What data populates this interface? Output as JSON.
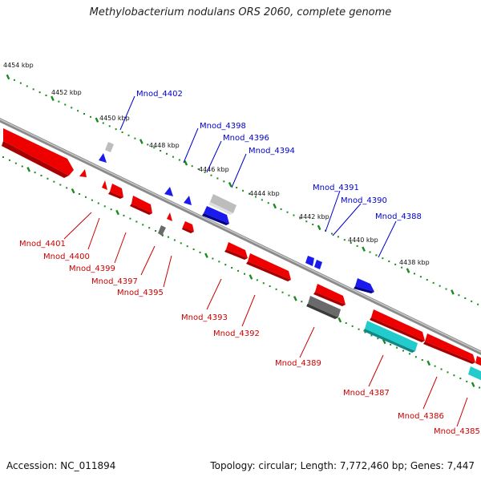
{
  "title": "Methylobacterium nodulans ORS 2060, complete genome",
  "footer": {
    "accession": "Accession: NC_011894",
    "summary": "Topology: circular; Length: 7,772,460 bp; Genes: 7,447"
  },
  "colors": {
    "forward_label": "#0000cc",
    "reverse_label": "#cc0000",
    "red": "#ee0000",
    "blue": "#1a1aee",
    "gray": "#bdbdbd",
    "darkgray": "#6a6a6a",
    "cyan": "#22cccc",
    "tick": "#1a8a1a",
    "backbone": "#8a8a8a"
  },
  "scale_labels": [
    "4454 kbp",
    "4452 kbp",
    "4450 kbp",
    "4448 kbp",
    "4446 kbp",
    "4444 kbp",
    "4442 kbp",
    "4440 kbp",
    "4438 kbp"
  ],
  "forward_labels": [
    "Mnod_4402",
    "Mnod_4398",
    "Mnod_4396",
    "Mnod_4394",
    "Mnod_4391",
    "Mnod_4390",
    "Mnod_4388"
  ],
  "reverse_labels": [
    "Mnod_4401",
    "Mnod_4400",
    "Mnod_4399",
    "Mnod_4397",
    "Mnod_4395",
    "Mnod_4393",
    "Mnod_4392",
    "Mnod_4389",
    "Mnod_4387",
    "Mnod_4386",
    "Mnod_4385"
  ]
}
